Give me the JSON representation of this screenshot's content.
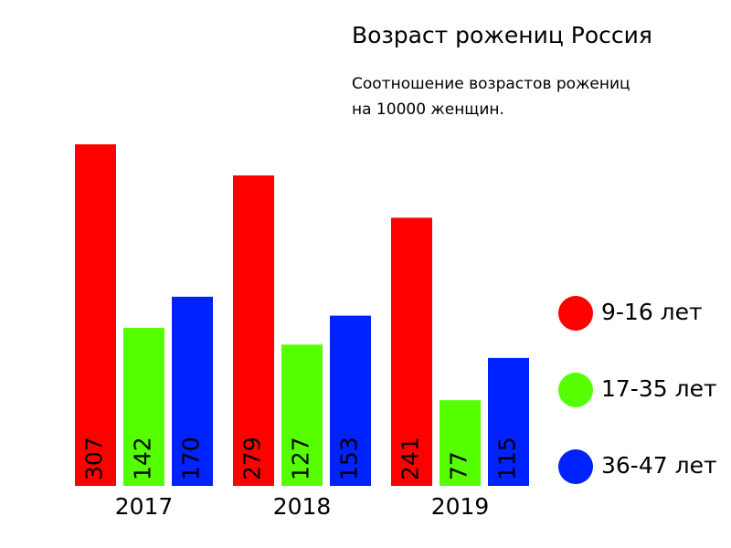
{
  "chart_data": {
    "type": "bar",
    "title": "Возраст рожениц Россия",
    "subtitle": [
      "Соотношение возрастов рожениц",
      "на 10000 женщин."
    ],
    "categories": [
      "2017",
      "2018",
      "2019"
    ],
    "series": [
      {
        "name": "9-16 лет",
        "color": "#ff0000",
        "values": [
          307,
          279,
          241
        ]
      },
      {
        "name": "17-35 лет",
        "color": "#55ff00",
        "values": [
          142,
          127,
          77
        ]
      },
      {
        "name": "36-47 лет",
        "color": "#0022ff",
        "values": [
          170,
          153,
          115
        ]
      }
    ]
  }
}
